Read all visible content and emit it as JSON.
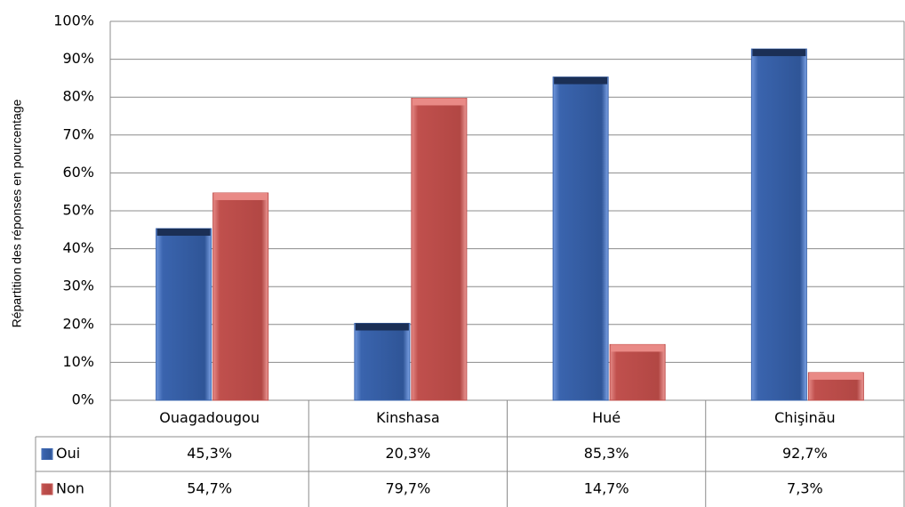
{
  "chart_data": {
    "type": "bar",
    "y_label": "Répartition  des réponses  en pourcentage",
    "categories": [
      "Ouagadougou",
      "Kinshasa",
      "Hué",
      "Chişinău"
    ],
    "series": [
      {
        "name": "Oui",
        "color": "#3a64ae",
        "values": [
          45.3,
          20.3,
          85.3,
          92.7
        ],
        "value_labels": [
          "45,3%",
          "20,3%",
          "85,3%",
          "92,7%"
        ]
      },
      {
        "name": "Non",
        "color": "#c0504d",
        "values": [
          54.7,
          79.7,
          14.7,
          7.3
        ],
        "value_labels": [
          "54,7%",
          "79,7%",
          "14,7%",
          "7,3%"
        ]
      }
    ],
    "ylim": [
      0,
      100
    ],
    "yticks": [
      {
        "value": 0,
        "label": "0%"
      },
      {
        "value": 10,
        "label": "10%"
      },
      {
        "value": 20,
        "label": "20%"
      },
      {
        "value": 30,
        "label": "30%"
      },
      {
        "value": 40,
        "label": "40%"
      },
      {
        "value": 50,
        "label": "50%"
      },
      {
        "value": 60,
        "label": "60%"
      },
      {
        "value": 70,
        "label": "70%"
      },
      {
        "value": 80,
        "label": "80%"
      },
      {
        "value": 90,
        "label": "90%"
      },
      {
        "value": 100,
        "label": "100%"
      }
    ],
    "grid": true
  }
}
